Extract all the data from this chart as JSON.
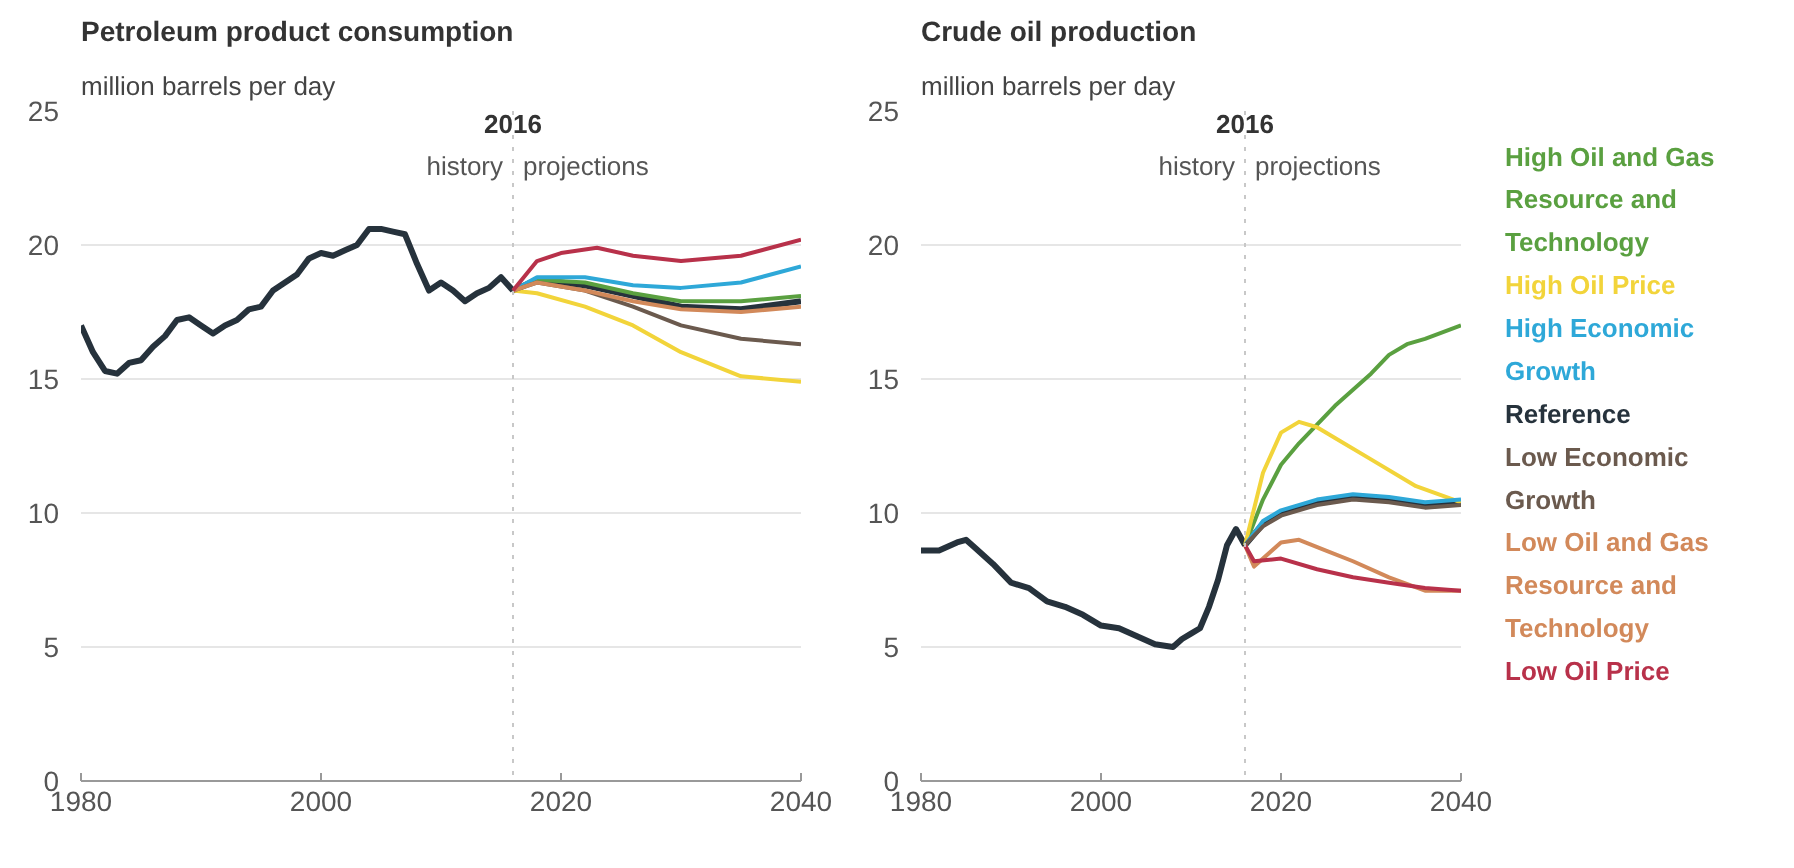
{
  "chart_data": [
    {
      "type": "line",
      "title": "Petroleum product consumption",
      "subtitle": "million barrels per day",
      "xlim": [
        1980,
        2040
      ],
      "ylim": [
        0,
        25
      ],
      "xticks": [
        1980,
        2000,
        2020,
        2040
      ],
      "yticks": [
        0,
        5,
        10,
        15,
        20,
        25
      ],
      "grid": "y",
      "ref_lines": [
        {
          "axis": "x",
          "value": 2016,
          "label": "2016",
          "line_style": "dotted",
          "color": "#c8c8c8"
        }
      ],
      "annotations": [
        "history",
        "projections"
      ],
      "series": [
        {
          "color": "#26323c",
          "x": [
            1980,
            1981,
            1982,
            1983,
            1984,
            1985,
            1986,
            1987,
            1988,
            1989,
            1990,
            1991,
            1992,
            1993,
            1994,
            1995,
            1996,
            1997,
            1998,
            1999,
            2000,
            2001,
            2002,
            2003,
            2004,
            2005,
            2006,
            2007,
            2008,
            2009,
            2010,
            2011,
            2012,
            2013,
            2014,
            2015,
            2016
          ],
          "values": [
            17.0,
            16.0,
            15.3,
            15.2,
            15.6,
            15.7,
            16.2,
            16.6,
            17.2,
            17.3,
            17.0,
            16.7,
            17.0,
            17.2,
            17.6,
            17.7,
            18.3,
            18.6,
            18.9,
            19.5,
            19.7,
            19.6,
            19.8,
            20.0,
            20.6,
            20.6,
            20.5,
            20.4,
            19.3,
            18.3,
            18.6,
            18.3,
            17.9,
            18.2,
            18.4,
            18.8,
            18.3
          ]
        },
        {
          "color": "#5aa040",
          "x": [
            2016,
            2018,
            2022,
            2026,
            2030,
            2035,
            2040
          ],
          "values": [
            18.3,
            18.7,
            18.6,
            18.2,
            17.9,
            17.9,
            18.1
          ]
        },
        {
          "color": "#f2d43a",
          "x": [
            2016,
            2018,
            2022,
            2026,
            2030,
            2035,
            2040
          ],
          "values": [
            18.3,
            18.2,
            17.7,
            17.0,
            16.0,
            15.1,
            14.9
          ]
        },
        {
          "color": "#2ea8d8",
          "x": [
            2016,
            2018,
            2022,
            2026,
            2030,
            2035,
            2040
          ],
          "values": [
            18.3,
            18.8,
            18.8,
            18.5,
            18.4,
            18.6,
            19.2
          ]
        },
        {
          "color": "#26323c",
          "x": [
            2016,
            2018,
            2022,
            2026,
            2030,
            2035,
            2040
          ],
          "values": [
            18.3,
            18.7,
            18.5,
            18.1,
            17.7,
            17.6,
            17.9
          ]
        },
        {
          "color": "#6b5a4e",
          "x": [
            2016,
            2018,
            2022,
            2026,
            2030,
            2035,
            2040
          ],
          "values": [
            18.3,
            18.6,
            18.3,
            17.7,
            17.0,
            16.5,
            16.3
          ]
        },
        {
          "color": "#d2895a",
          "x": [
            2016,
            2018,
            2022,
            2026,
            2030,
            2035,
            2040
          ],
          "values": [
            18.3,
            18.6,
            18.3,
            17.9,
            17.6,
            17.5,
            17.7
          ]
        },
        {
          "color": "#b8314a",
          "x": [
            2016,
            2018,
            2020,
            2023,
            2026,
            2030,
            2035,
            2040
          ],
          "values": [
            18.3,
            19.4,
            19.7,
            19.9,
            19.6,
            19.4,
            19.6,
            20.2
          ]
        }
      ]
    },
    {
      "type": "line",
      "title": "Crude oil production",
      "subtitle": "million barrels per day",
      "xlim": [
        1980,
        2040
      ],
      "ylim": [
        0,
        25
      ],
      "xticks": [
        1980,
        2000,
        2020,
        2040
      ],
      "yticks": [
        0,
        5,
        10,
        15,
        20,
        25
      ],
      "grid": "y",
      "ref_lines": [
        {
          "axis": "x",
          "value": 2016,
          "label": "2016",
          "line_style": "dotted",
          "color": "#c8c8c8"
        }
      ],
      "annotations": [
        "history",
        "projections"
      ],
      "series": [
        {
          "color": "#26323c",
          "x": [
            1980,
            1982,
            1984,
            1985,
            1986,
            1988,
            1990,
            1992,
            1994,
            1996,
            1998,
            2000,
            2002,
            2004,
            2006,
            2008,
            2009,
            2010,
            2011,
            2012,
            2013,
            2014,
            2015,
            2016
          ],
          "values": [
            8.6,
            8.6,
            8.9,
            9.0,
            8.7,
            8.1,
            7.4,
            7.2,
            6.7,
            6.5,
            6.2,
            5.8,
            5.7,
            5.4,
            5.1,
            5.0,
            5.3,
            5.5,
            5.7,
            6.5,
            7.5,
            8.8,
            9.4,
            8.8
          ]
        },
        {
          "name": "High Oil and Gas Resource and Technology",
          "color": "#5aa040",
          "x": [
            2016,
            2018,
            2020,
            2022,
            2024,
            2026,
            2028,
            2030,
            2032,
            2034,
            2036,
            2040
          ],
          "values": [
            8.8,
            10.5,
            11.8,
            12.6,
            13.3,
            14.0,
            14.6,
            15.2,
            15.9,
            16.3,
            16.5,
            17.0
          ]
        },
        {
          "name": "High Oil Price",
          "color": "#f2d43a",
          "x": [
            2016,
            2018,
            2020,
            2022,
            2024,
            2026,
            2030,
            2035,
            2040
          ],
          "values": [
            8.8,
            11.5,
            13.0,
            13.4,
            13.2,
            12.8,
            12.0,
            11.0,
            10.4
          ]
        },
        {
          "name": "High Economic Growth",
          "color": "#2ea8d8",
          "x": [
            2016,
            2018,
            2020,
            2024,
            2028,
            2032,
            2036,
            2040
          ],
          "values": [
            8.8,
            9.7,
            10.1,
            10.5,
            10.7,
            10.6,
            10.4,
            10.5
          ]
        },
        {
          "name": "Reference",
          "color": "#26323c",
          "x": [
            2016,
            2018,
            2020,
            2024,
            2028,
            2032,
            2036,
            2040
          ],
          "values": [
            8.8,
            9.6,
            10.0,
            10.4,
            10.6,
            10.5,
            10.3,
            10.4
          ]
        },
        {
          "name": "Low Economic Growth",
          "color": "#6b5a4e",
          "x": [
            2016,
            2018,
            2020,
            2024,
            2028,
            2032,
            2036,
            2040
          ],
          "values": [
            8.8,
            9.5,
            9.9,
            10.3,
            10.5,
            10.4,
            10.2,
            10.3
          ]
        },
        {
          "name": "Low Oil and Gas Resource and Technology",
          "color": "#d2895a",
          "x": [
            2016,
            2017,
            2020,
            2022,
            2025,
            2028,
            2032,
            2036,
            2040
          ],
          "values": [
            8.8,
            8.0,
            8.9,
            9.0,
            8.6,
            8.2,
            7.6,
            7.1,
            7.1
          ]
        },
        {
          "name": "Low Oil Price",
          "color": "#b8314a",
          "x": [
            2016,
            2017,
            2020,
            2024,
            2028,
            2032,
            2036,
            2040
          ],
          "values": [
            8.8,
            8.2,
            8.3,
            7.9,
            7.6,
            7.4,
            7.2,
            7.1
          ]
        }
      ]
    }
  ]
}
